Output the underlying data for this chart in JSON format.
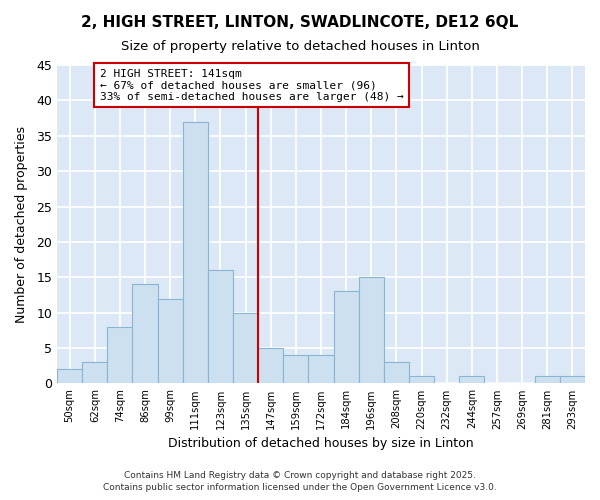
{
  "title": "2, HIGH STREET, LINTON, SWADLINCOTE, DE12 6QL",
  "subtitle": "Size of property relative to detached houses in Linton",
  "xlabel": "Distribution of detached houses by size in Linton",
  "ylabel": "Number of detached properties",
  "categories": [
    "50sqm",
    "62sqm",
    "74sqm",
    "86sqm",
    "99sqm",
    "111sqm",
    "123sqm",
    "135sqm",
    "147sqm",
    "159sqm",
    "172sqm",
    "184sqm",
    "196sqm",
    "208sqm",
    "220sqm",
    "232sqm",
    "244sqm",
    "257sqm",
    "269sqm",
    "281sqm",
    "293sqm"
  ],
  "values": [
    2,
    3,
    8,
    14,
    12,
    37,
    16,
    10,
    5,
    4,
    4,
    13,
    15,
    3,
    1,
    0,
    1,
    0,
    0,
    1,
    1
  ],
  "bar_color": "#cce0f0",
  "bar_edge_color": "#8ab4d4",
  "vline_color": "#cc0000",
  "annotation_text": "2 HIGH STREET: 141sqm\n← 67% of detached houses are smaller (96)\n33% of semi-detached houses are larger (48) →",
  "annotation_box_color": "#ffffff",
  "annotation_box_edge_color": "#cc0000",
  "ylim": [
    0,
    45
  ],
  "yticks": [
    0,
    5,
    10,
    15,
    20,
    25,
    30,
    35,
    40,
    45
  ],
  "plot_bg_color": "#dce8f5",
  "fig_bg_color": "#ffffff",
  "grid_color": "#ffffff",
  "footer": "Contains HM Land Registry data © Crown copyright and database right 2025.\nContains public sector information licensed under the Open Government Licence v3.0."
}
